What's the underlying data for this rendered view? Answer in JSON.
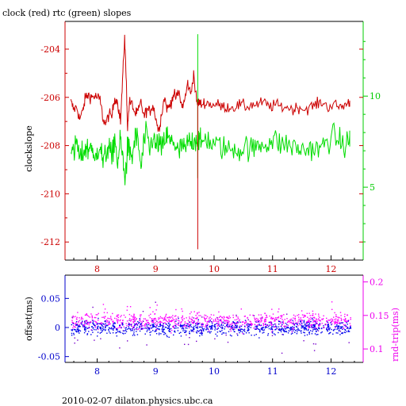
{
  "title": "clock (red) rtc (green) slopes",
  "footer": "2010-02-07  dilaton.physics.ubc.ca",
  "colors": {
    "clock": "#cc0000",
    "rtc": "#00dd00",
    "left_axis": "#cc0000",
    "right_axis": "#00cc00",
    "x_axis": "#000000",
    "bottom_left_axis": "#0000cc",
    "bottom_right_axis": "#ee00ee",
    "offset_points": "#0000ee",
    "offset_outliers": "#7700cc",
    "roundtrip_points": "#ff00ff"
  },
  "chart_data": [
    {
      "type": "line",
      "title": "clock (red) rtc (green) slopes",
      "ylabel": "clockslope",
      "y2label": "",
      "xlim": [
        7.45,
        12.55
      ],
      "ylim": [
        -212.75,
        -202.85
      ],
      "y2lim": [
        1.0,
        14.1
      ],
      "xticks": [
        8,
        9,
        10,
        11,
        12
      ],
      "yticks": [
        -204,
        -206,
        -208,
        -210,
        -212
      ],
      "y2ticks": [
        5,
        10
      ],
      "series": [
        {
          "name": "clock",
          "axis": "left",
          "x": [
            7.55,
            7.6,
            7.65,
            7.7,
            7.75,
            7.8,
            7.85,
            7.9,
            7.95,
            8.0,
            8.05,
            8.1,
            8.15,
            8.2,
            8.25,
            8.3,
            8.35,
            8.4,
            8.44,
            8.47,
            8.5,
            8.52,
            8.55,
            8.6,
            8.65,
            8.7,
            8.75,
            8.8,
            8.85,
            8.9,
            8.95,
            9.0,
            9.05,
            9.1,
            9.15,
            9.2,
            9.25,
            9.3,
            9.35,
            9.4,
            9.45,
            9.5,
            9.55,
            9.6,
            9.65,
            9.7,
            9.74,
            9.78,
            9.85,
            9.95,
            10.05,
            10.15,
            10.25,
            10.35,
            10.45,
            10.55,
            10.65,
            10.75,
            10.85,
            10.95,
            11.05,
            11.15,
            11.25,
            11.35,
            11.45,
            11.55,
            11.65,
            11.75,
            11.85,
            11.95,
            12.05,
            12.15,
            12.25,
            12.32
          ],
          "y": [
            -206.2,
            -206.5,
            -206.4,
            -206.9,
            -206.6,
            -206.0,
            -205.9,
            -206.0,
            -205.95,
            -206.0,
            -206.1,
            -206.9,
            -207.1,
            -206.7,
            -206.8,
            -206.0,
            -206.2,
            -207.0,
            -205.0,
            -203.5,
            -205.5,
            -207.3,
            -206.2,
            -206.3,
            -206.7,
            -206.6,
            -206.2,
            -206.8,
            -206.5,
            -206.6,
            -206.3,
            -206.8,
            -207.4,
            -206.7,
            -206.0,
            -206.5,
            -206.3,
            -205.9,
            -206.0,
            -205.8,
            -206.4,
            -206.1,
            -205.4,
            -205.9,
            -205.0,
            -206.2,
            -206.2,
            -206.3,
            -206.2,
            -206.3,
            -206.3,
            -206.4,
            -206.4,
            -206.4,
            -206.3,
            -206.4,
            -206.3,
            -206.3,
            -206.2,
            -206.4,
            -206.3,
            -206.4,
            -206.4,
            -206.5,
            -206.4,
            -206.5,
            -206.4,
            -206.3,
            -206.2,
            -206.4,
            -206.3,
            -206.4,
            -206.3,
            -206.2
          ]
        },
        {
          "name": "rtc",
          "axis": "right",
          "x": [
            7.55,
            7.6,
            7.65,
            7.7,
            7.75,
            7.8,
            7.85,
            7.9,
            7.95,
            8.0,
            8.05,
            8.1,
            8.15,
            8.2,
            8.25,
            8.3,
            8.35,
            8.4,
            8.44,
            8.47,
            8.5,
            8.52,
            8.55,
            8.6,
            8.65,
            8.7,
            8.75,
            8.8,
            8.85,
            8.9,
            8.95,
            9.0,
            9.05,
            9.1,
            9.15,
            9.2,
            9.25,
            9.3,
            9.35,
            9.4,
            9.45,
            9.5,
            9.55,
            9.6,
            9.65,
            9.7,
            9.74,
            9.78,
            9.85,
            9.95,
            10.05,
            10.15,
            10.25,
            10.35,
            10.45,
            10.55,
            10.65,
            10.75,
            10.85,
            10.95,
            11.05,
            11.15,
            11.25,
            11.35,
            11.45,
            11.55,
            11.65,
            11.75,
            11.85,
            11.95,
            12.05,
            12.15,
            12.25,
            12.32
          ],
          "y": [
            7.4,
            6.6,
            7.6,
            6.5,
            6.8,
            7.2,
            7.0,
            7.5,
            6.2,
            7.0,
            7.4,
            6.3,
            6.8,
            7.4,
            6.4,
            7.8,
            6.3,
            7.6,
            6.5,
            5.5,
            6.2,
            7.2,
            7.0,
            6.6,
            7.8,
            7.5,
            6.0,
            7.5,
            7.9,
            7.0,
            7.8,
            7.2,
            7.5,
            7.0,
            7.6,
            7.8,
            7.4,
            7.6,
            7.2,
            6.8,
            7.4,
            6.9,
            7.5,
            7.4,
            7.6,
            7.7,
            7.6,
            7.3,
            7.8,
            7.4,
            7.3,
            7.2,
            7.0,
            7.2,
            7.0,
            7.3,
            7.0,
            7.3,
            7.4,
            7.5,
            7.6,
            7.3,
            7.4,
            7.2,
            7.1,
            7.0,
            7.2,
            7.0,
            7.2,
            7.6,
            7.8,
            7.5,
            7.2,
            7.8
          ]
        }
      ],
      "spikes": [
        {
          "series": "rtc",
          "x": 9.72,
          "y_from": 5.5,
          "y_to": 13.4
        },
        {
          "series": "clock",
          "x": 9.72,
          "y_from": -212.3,
          "y_to": -206.2
        }
      ]
    },
    {
      "type": "scatter",
      "title": "",
      "ylabel": "offset(ms)",
      "y2label": "rnd-trip(ms)",
      "xlim": [
        7.45,
        12.55
      ],
      "ylim": [
        -0.06,
        0.09
      ],
      "y2lim": [
        0.08,
        0.21
      ],
      "xticks": [
        8,
        9,
        10,
        11,
        12
      ],
      "yticks": [
        0.05,
        0,
        -0.05
      ],
      "y2ticks": [
        0.2,
        0.15,
        0.1
      ],
      "series": [
        {
          "name": "offset",
          "axis": "left",
          "x_range": [
            7.55,
            12.33
          ],
          "center": 0.0,
          "spread": 0.006
        },
        {
          "name": "rnd-trip",
          "axis": "right",
          "x_range": [
            7.55,
            12.33
          ],
          "center": 0.142,
          "spread": 0.006
        }
      ]
    }
  ]
}
